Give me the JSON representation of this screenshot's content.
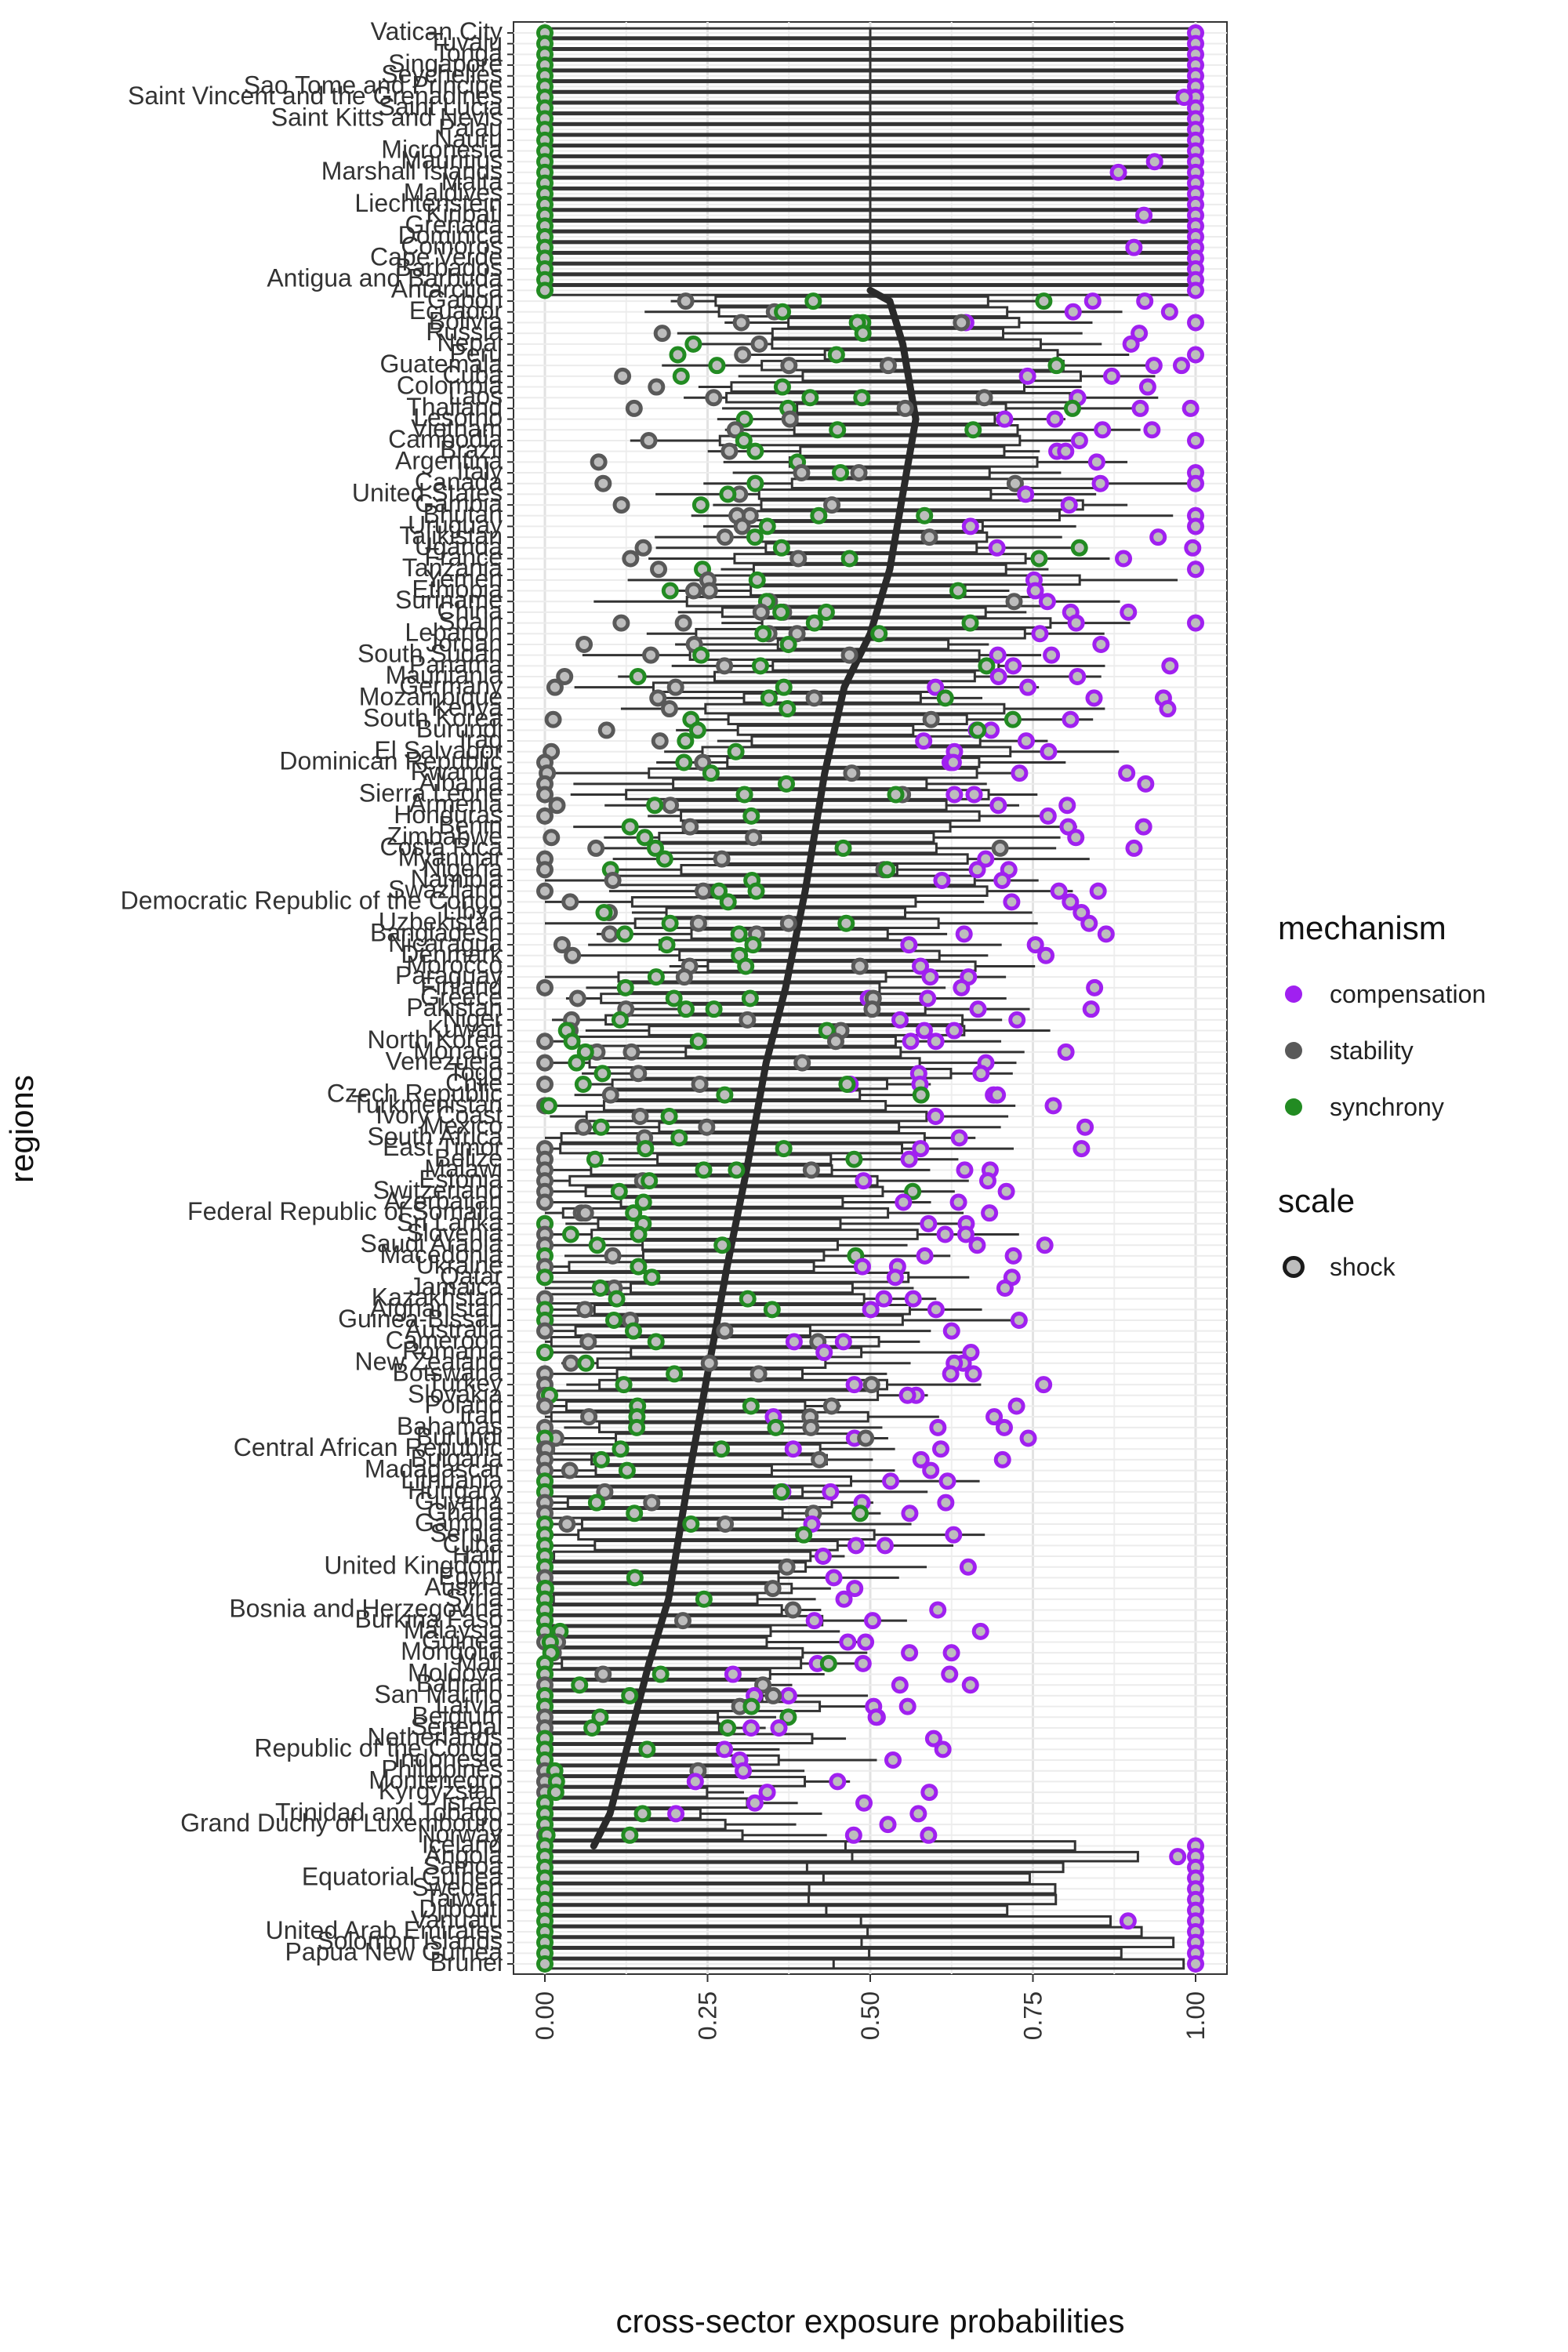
{
  "chart_data": {
    "type": "boxplot-dot",
    "xlabel": "cross-sector exposure probabilities",
    "ylabel": "regions",
    "xlim": [
      0,
      1
    ],
    "xticks": [
      "0.00",
      "0.25",
      "0.50",
      "0.75",
      "1.00"
    ],
    "grid": true,
    "legend_position": "right",
    "legend": {
      "mechanism_title": "mechanism",
      "mechanism": [
        {
          "label": "compensation",
          "color": "#a020f0"
        },
        {
          "label": "stability",
          "color": "#595959"
        },
        {
          "label": "synchrony",
          "color": "#228b22"
        }
      ],
      "scale_title": "scale",
      "scale": [
        {
          "label": "shock"
        }
      ]
    },
    "categories": [
      "Vatican City",
      "Tuvalu",
      "Tonga",
      "Singapore",
      "Seychelles",
      "Sao Tome and Principe",
      "Saint Vincent and the Grenadines",
      "Saint Lucia",
      "Saint Kitts and Nevis",
      "Palau",
      "Nauru",
      "Micronesia",
      "Mauritius",
      "Marshall Islands",
      "Malta",
      "Maldives",
      "Liechtenstein",
      "Kiribati",
      "Grenada",
      "Dominica",
      "Comoros",
      "Cape Verde",
      "Barbados",
      "Antigua and Barbuda",
      "Antarctica",
      "Gabon",
      "Ecuador",
      "Bolivia",
      "Russia",
      "Nepal",
      "Peru",
      "Guatemala",
      "Cuba",
      "Colombia",
      "Laos",
      "Thailand",
      "Lesotho",
      "Vietnam",
      "Cambodia",
      "Brazil",
      "Argentina",
      "Italy",
      "Canada",
      "United States",
      "Gambia",
      "Bhutan",
      "Uruguay",
      "Tajikistan",
      "Uganda",
      "France",
      "Tanzania",
      "Yemen",
      "Ethiopia",
      "Suriname",
      "China",
      "Spain",
      "Lebanon",
      "Jordan",
      "South Sudan",
      "Panama",
      "Mauritania",
      "Germany",
      "Mozambique",
      "Kenya",
      "South Korea",
      "Burundi",
      "Iraq",
      "El Salvador",
      "Dominican Republic",
      "Rwanda",
      "Albania",
      "Sierra Leone",
      "Armenia",
      "Honduras",
      "Benin",
      "Zimbabwe",
      "Costa Rica",
      "Myanmar",
      "Nigeria",
      "Namibia",
      "Swaziland",
      "Democratic Republic of the Congo",
      "Libya",
      "Uzbekistan",
      "Bangladesh",
      "Nicaragua",
      "Denmark",
      "Morocco",
      "Paraguay",
      "Finland",
      "Greece",
      "Pakistan",
      "Niger",
      "Kuwait",
      "North Korea",
      "Monaco",
      "Venezuela",
      "Togo",
      "Chile",
      "Czech Republic",
      "Turkmenistan",
      "Ivory Coast",
      "Mexico",
      "South Africa",
      "East Timor",
      "Belize",
      "Malawi",
      "Estonia",
      "Switzerland",
      "Azerbaijan",
      "Federal Republic of Somalia",
      "Sri Lanka",
      "Slovenia",
      "Saudi Arabia",
      "Macedonia",
      "Ukraine",
      "Qatar",
      "Jamaica",
      "Kazakhstan",
      "Afghanistan",
      "Guinea-Bissau",
      "Australia",
      "Cameroon",
      "Romania",
      "New Zealand",
      "Botswana",
      "Turkey",
      "Slovakia",
      "Poland",
      "Iran",
      "Bahamas",
      "Burundi",
      "Central African Republic",
      "Bulgaria",
      "Madagascar",
      "Lithuania",
      "Hungary",
      "Guyana",
      "Ghana",
      "Gambia",
      "Serbia",
      "Cuba",
      "Haiti",
      "United Kingdom",
      "Egypt",
      "Austria",
      "Syria",
      "Bosnia and Herzegovina",
      "Burkina Faso",
      "Malaysia",
      "Guinea",
      "Mongolia",
      "Mali",
      "Moldova",
      "Bahrain",
      "San Marino",
      "Latvia",
      "Belgium",
      "Senegal",
      "Netherlands",
      "Republic of the Congo",
      "Indonesia",
      "Philippines",
      "Montenegro",
      "Kyrgyzstan",
      "Israel",
      "Trinidad and Tobago",
      "Grand Duchy of Luxembourg",
      "Norway",
      "Iceland",
      "Angola",
      "Samoa",
      "Equatorial Guinea",
      "Sweden",
      "Taiwan",
      "Djibouti",
      "Vanuatu",
      "United Arab Emirates",
      "Solomon Islands",
      "Papua New Guinea",
      "Brunei"
    ],
    "median_curve": [
      [
        0.5,
        "Antarctica"
      ],
      [
        0.53,
        "Gabon"
      ],
      [
        0.55,
        "Nepal"
      ],
      [
        0.57,
        "Lesotho"
      ],
      [
        0.55,
        "United States"
      ],
      [
        0.53,
        "Tanzania"
      ],
      [
        0.5,
        "Lebanon"
      ],
      [
        0.46,
        "Germany"
      ],
      [
        0.43,
        "Rwanda"
      ],
      [
        0.4,
        "Swaziland"
      ],
      [
        0.37,
        "Finland"
      ],
      [
        0.34,
        "Venezuela"
      ],
      [
        0.31,
        "Malawi"
      ],
      [
        0.28,
        "Ukraine"
      ],
      [
        0.25,
        "Botswana"
      ],
      [
        0.22,
        "Lithuania"
      ],
      [
        0.19,
        "Syria"
      ],
      [
        0.16,
        "Mali"
      ],
      [
        0.13,
        "Netherlands"
      ],
      [
        0.1,
        "Trinidad and Tobago"
      ],
      [
        0.05,
        "Equatorial Guinea"
      ],
      [
        0.02,
        "Vanuatu"
      ],
      [
        0.0,
        "Brunei"
      ]
    ]
  }
}
